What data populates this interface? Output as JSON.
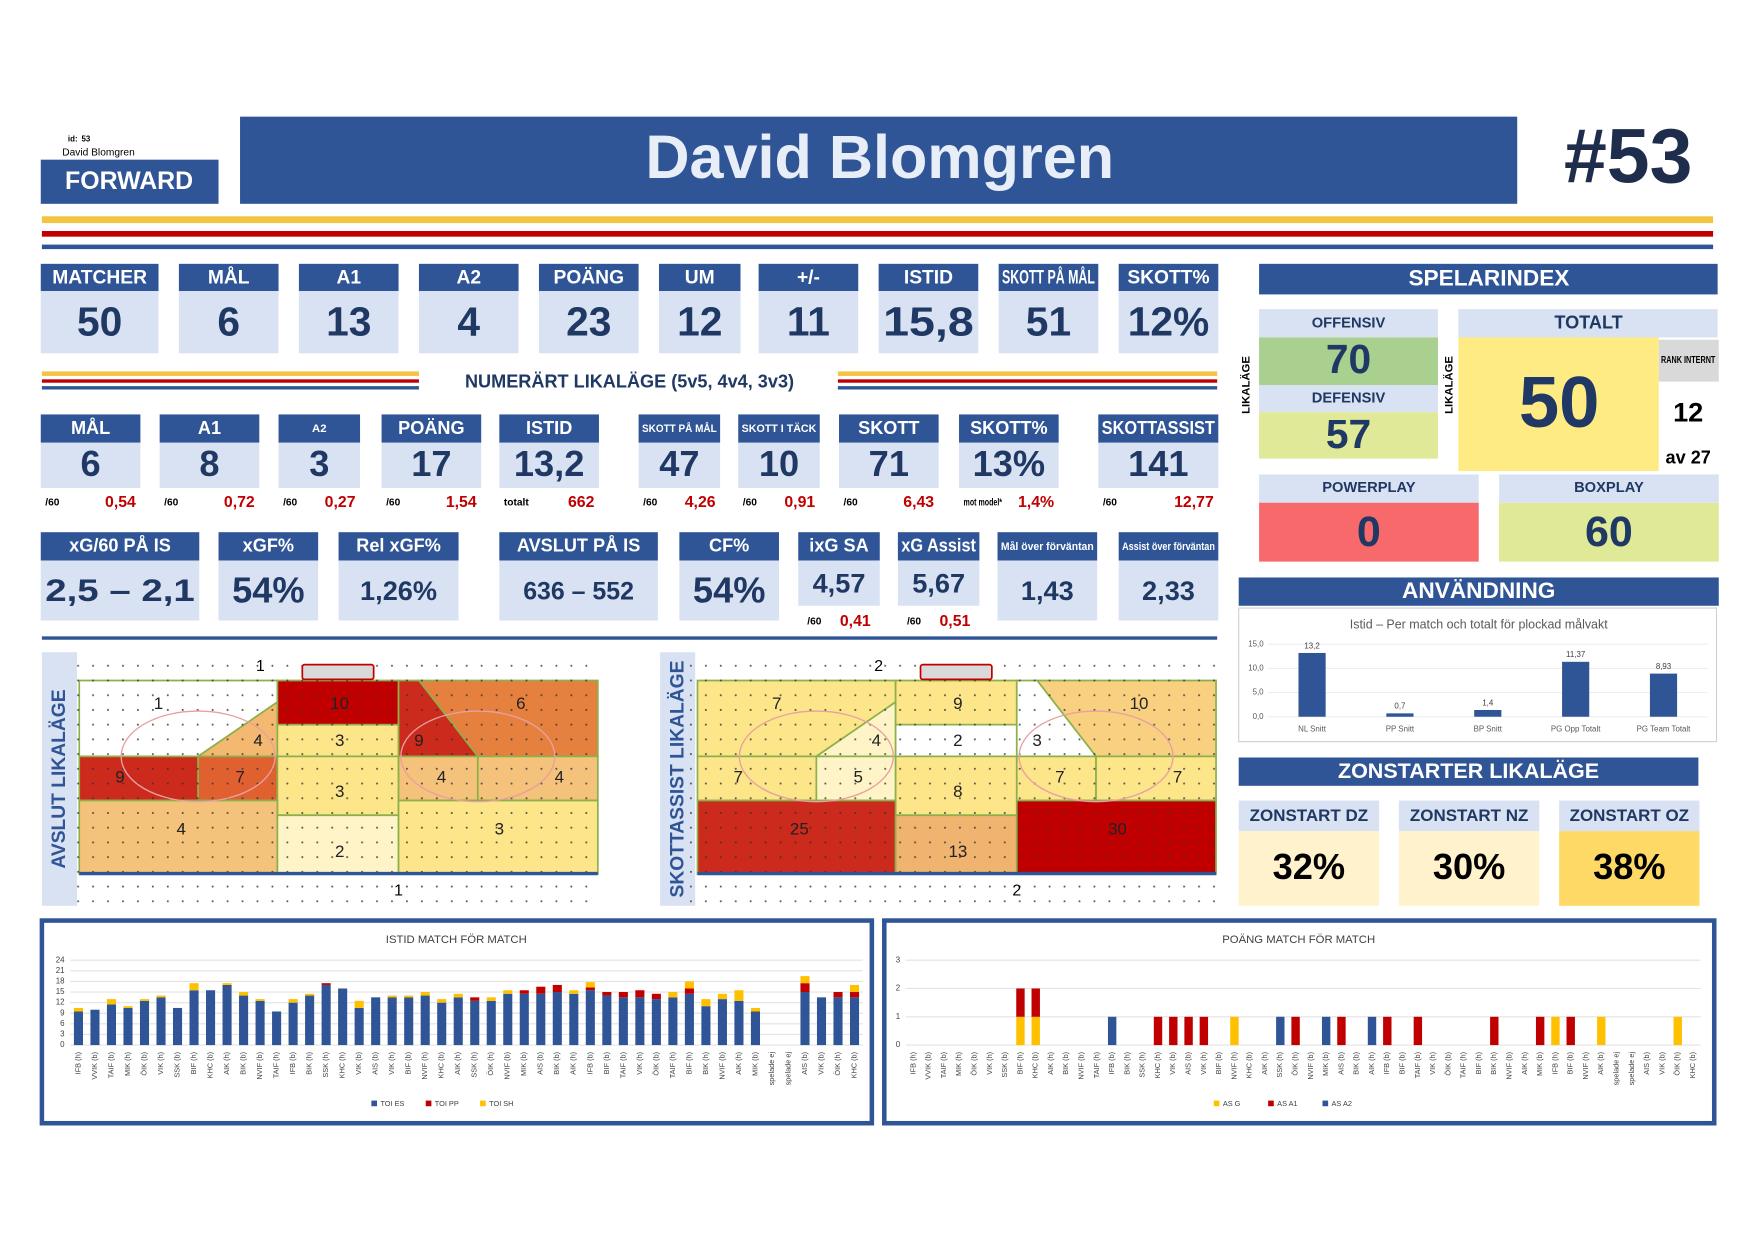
{
  "header": {
    "id_label": "id:",
    "id": "53",
    "name_small": "David Blomgren",
    "position": "FORWARD",
    "name": "David Blomgren",
    "number": "#53"
  },
  "stats": [
    {
      "label": "MATCHER",
      "value": "50"
    },
    {
      "label": "MÅL",
      "value": "6"
    },
    {
      "label": "A1",
      "value": "13"
    },
    {
      "label": "A2",
      "value": "4"
    },
    {
      "label": "POÄNG",
      "value": "23"
    },
    {
      "label": "UM",
      "value": "12"
    },
    {
      "label": "+/-",
      "value": "11"
    },
    {
      "label": "ISTID",
      "value": "15,8"
    },
    {
      "label": "SKOTT PÅ MÅL",
      "value": "51"
    },
    {
      "label": "SKOTT%",
      "value": "12%"
    }
  ],
  "even_strength": {
    "title": "NUMERÄRT LIKALÄGE (5v5, 4v4, 3v3)",
    "items": [
      {
        "label": "MÅL",
        "value": "6",
        "sub_label": "/60",
        "sub_value": "0,54"
      },
      {
        "label": "A1",
        "value": "8",
        "sub_label": "/60",
        "sub_value": "0,72"
      },
      {
        "label": "A2",
        "value": "3",
        "sub_label": "/60",
        "sub_value": "0,27"
      },
      {
        "label": "POÄNG",
        "value": "17",
        "sub_label": "/60",
        "sub_value": "1,54"
      },
      {
        "label": "ISTID",
        "value": "13,2",
        "sub_label": "totalt",
        "sub_value": "662"
      },
      {
        "label": "SKOTT PÅ MÅL",
        "value": "47",
        "sub_label": "/60",
        "sub_value": "4,26"
      },
      {
        "label": "SKOTT I TÄCK",
        "value": "10",
        "sub_label": "/60",
        "sub_value": "0,91"
      },
      {
        "label": "SKOTT",
        "value": "71",
        "sub_label": "/60",
        "sub_value": "6,43"
      },
      {
        "label": "SKOTT%",
        "value": "13%",
        "sub_label": "mot model*",
        "sub_value": "1,4%"
      },
      {
        "label": "SKOTTASSIST",
        "value": "141",
        "sub_label": "/60",
        "sub_value": "12,77"
      }
    ]
  },
  "xg": [
    {
      "label": "xG/60 PÅ IS",
      "value": "2,5 – 2,1"
    },
    {
      "label": "xGF%",
      "value": "54%"
    },
    {
      "label": "Rel xGF%",
      "value": "1,26%"
    },
    {
      "label": "AVSLUT PÅ IS",
      "value": "636 – 552"
    },
    {
      "label": "CF%",
      "value": "54%"
    },
    {
      "label": "ixG SA",
      "value": "4,57",
      "sub_label": "/60",
      "sub_value": "0,41"
    },
    {
      "label": "xG Assist",
      "value": "5,67",
      "sub_label": "/60",
      "sub_value": "0,51"
    },
    {
      "label": "Mål över förväntan",
      "value": "1,43"
    },
    {
      "label": "Assist över förväntan",
      "value": "2,33"
    }
  ],
  "index": {
    "title": "SPELARINDEX",
    "side_label": "LIKALÄGE",
    "offensive_label": "OFFENSIV",
    "offensive": "70",
    "defensive_label": "DEFENSIV",
    "defensive": "57",
    "total_label": "TOTALT",
    "total": "50",
    "rank_label": "RANK INTERNT",
    "rank": "12",
    "rank_of": "av 27",
    "powerplay_label": "POWERPLAY",
    "powerplay": "0",
    "boxplay_label": "BOXPLAY",
    "boxplay": "60"
  },
  "usage": {
    "title": "ANVÄNDNING",
    "chart": {
      "type": "bar",
      "title": "Istid – Per match och totalt för plockad målvakt",
      "categories": [
        "NL Snitt",
        "PP Snitt",
        "BP Snitt",
        "PG Opp Totalt",
        "PG Team Totalt"
      ],
      "values": [
        13.2,
        0.7,
        1.4,
        11.37,
        8.93
      ],
      "value_labels": [
        "13,2",
        "0,7",
        "1,4",
        "11,37",
        "8,93"
      ],
      "color": "#2f5597",
      "ylim": [
        0,
        15
      ],
      "yticks": [
        {
          "value": 0,
          "label": "0,0"
        },
        {
          "value": 5,
          "label": "5,0"
        },
        {
          "value": 10,
          "label": "10,0"
        },
        {
          "value": 15,
          "label": "15,0"
        }
      ]
    }
  },
  "zone_starts": {
    "title": "ZONSTARTER LIKALÄGE",
    "items": [
      {
        "label": "ZONSTART DZ",
        "value": "32%",
        "color": "#fff2cc"
      },
      {
        "label": "ZONSTART NZ",
        "value": "30%",
        "color": "#fff2cc"
      },
      {
        "label": "ZONSTART OZ",
        "value": "38%",
        "color": "#ffd966"
      }
    ]
  },
  "rinks": [
    {
      "title": "AVSLUT LIKALÄGE",
      "top_label": "1",
      "bottom_label": "1",
      "zones": [
        {
          "value": 1,
          "color": "#ffffff"
        },
        {
          "value": 4,
          "color": "#f4b870"
        },
        {
          "value": 10,
          "color": "#c00000"
        },
        {
          "value": 3,
          "color": "#fde58a"
        },
        {
          "value": 6,
          "color": "#e5803f"
        },
        {
          "value": 9,
          "color": "#cc2a1c"
        },
        {
          "value": 9,
          "color": "#cc2a1c"
        },
        {
          "value": 7,
          "color": "#e06030"
        },
        {
          "value": 3,
          "color": "#fde58a"
        },
        {
          "value": 4,
          "color": "#f4c27a"
        },
        {
          "value": 4,
          "color": "#f4c27a"
        },
        {
          "value": 4,
          "color": "#f4c27a"
        },
        {
          "value": 2,
          "color": "#fff4c8"
        },
        {
          "value": 3,
          "color": "#fde58a"
        }
      ]
    },
    {
      "title": "SKOTTASSIST LIKALÄGE",
      "top_label": "2",
      "bottom_label": "2",
      "zones": [
        {
          "value": 7,
          "color": "#fde58a"
        },
        {
          "value": 4,
          "color": "#fff4c8"
        },
        {
          "value": 9,
          "color": "#fde58a"
        },
        {
          "value": 2,
          "color": "#ffffff"
        },
        {
          "value": 10,
          "color": "#f8d080"
        },
        {
          "value": 3,
          "color": "#ffffff"
        },
        {
          "value": 7,
          "color": "#fde58a"
        },
        {
          "value": 5,
          "color": "#fff4c8"
        },
        {
          "value": 8,
          "color": "#fde58a"
        },
        {
          "value": 7,
          "color": "#fde58a"
        },
        {
          "value": 7,
          "color": "#fde58a"
        },
        {
          "value": 25,
          "color": "#cc2a1c"
        },
        {
          "value": 13,
          "color": "#f0b470"
        },
        {
          "value": 30,
          "color": "#c00000"
        }
      ]
    }
  ],
  "toi_chart": {
    "type": "bar",
    "stacked": true,
    "title": "ISTID MATCH FÖR MATCH",
    "categories": [
      "IFB (h)",
      "VVIK (b)",
      "TAIF (b)",
      "MIK (h)",
      "ÖIK (b)",
      "VIK (h)",
      "SSK (b)",
      "BIF (h)",
      "KHC (b)",
      "AIK (h)",
      "BIK (b)",
      "NVIF (b)",
      "TAIF (h)",
      "IFB (b)",
      "BIK (h)",
      "SSK (h)",
      "KHC (h)",
      "VIK (b)",
      "AIS (b)",
      "VIK (h)",
      "BIF (b)",
      "NVIF (h)",
      "KHC (b)",
      "AIK (h)",
      "SSK (h)",
      "ÖIK (h)",
      "NVIF (b)",
      "MIK (b)",
      "AIS (b)",
      "BIK (b)",
      "AIK (h)",
      "IFB (b)",
      "BIF (b)",
      "TAIF (b)",
      "VIK (h)",
      "ÖIK (b)",
      "TAIF (h)",
      "BIF (h)",
      "BIK (h)",
      "NVIF (b)",
      "AIK (h)",
      "MIK (b)",
      "spelade ej",
      "spelade ej",
      "AIS (b)",
      "VIK (b)",
      "ÖIK (h)",
      "KHC (b)"
    ],
    "series": [
      {
        "name": "TOI ES",
        "color": "#2f5597",
        "values": [
          9.5,
          10,
          11.5,
          10.5,
          12.5,
          13.5,
          10.5,
          15.5,
          15.5,
          17,
          14,
          12.5,
          9.5,
          12,
          14,
          17,
          16,
          10.5,
          13.5,
          13.5,
          13.5,
          14,
          12,
          13.5,
          12.5,
          12.5,
          14.5,
          14.5,
          14.5,
          15,
          14.5,
          15.5,
          14,
          13.5,
          13.5,
          13,
          13.5,
          14.5,
          11,
          13,
          12.5,
          9.5,
          0,
          0,
          15,
          13.5,
          13.5,
          13.5
        ]
      },
      {
        "name": "TOI PP",
        "color": "#c00000",
        "values": [
          0,
          0,
          0,
          0,
          0,
          0,
          0,
          0,
          0,
          0,
          0,
          0,
          0,
          0,
          0,
          0.5,
          0,
          0,
          0,
          0,
          0,
          0,
          0,
          0,
          1,
          0,
          0,
          1,
          2,
          2,
          0,
          0.8,
          1,
          1.5,
          2,
          1.5,
          0,
          1.5,
          0,
          0,
          0,
          0,
          0,
          0,
          2.5,
          0,
          1.5,
          1.5
        ]
      },
      {
        "name": "TOI SH",
        "color": "#ffc000",
        "values": [
          1,
          0,
          1.5,
          0.5,
          0.5,
          0.5,
          0,
          2,
          0,
          0.5,
          1,
          0.5,
          0,
          1,
          0.5,
          0,
          0,
          2,
          0,
          0.5,
          0.5,
          1,
          1,
          1,
          0,
          1,
          1,
          0,
          0,
          0,
          1,
          1.5,
          0,
          0,
          0,
          0,
          1.5,
          2,
          2,
          1.5,
          3,
          1,
          0,
          0,
          2,
          0,
          0,
          2
        ]
      }
    ],
    "ylim": [
      0,
      24
    ],
    "yticks": [
      0,
      3,
      6,
      9,
      12,
      15,
      18,
      21,
      24
    ],
    "grid": true
  },
  "points_chart": {
    "type": "bar",
    "stacked": true,
    "title": "POÄNG MATCH FÖR MATCH",
    "categories": [
      "IFB (h)",
      "VVIK (b)",
      "TAIF (b)",
      "MIK (h)",
      "ÖIK (b)",
      "VIK (h)",
      "SSK (b)",
      "BIF (h)",
      "KHC (b)",
      "AIK (h)",
      "BIK (b)",
      "NVIF (b)",
      "TAIF (h)",
      "IFB (b)",
      "BIK (h)",
      "SSK (h)",
      "KHC (h)",
      "VIK (b)",
      "AIS (b)",
      "VIK (h)",
      "BIF (b)",
      "NVIF (h)",
      "KHC (b)",
      "AIK (h)",
      "SSK (h)",
      "ÖIK (h)",
      "NVIF (b)",
      "MIK (b)",
      "AIS (b)",
      "BIK (b)",
      "AIK (h)",
      "IFB (b)",
      "BIF (b)",
      "TAIF (b)",
      "VIK (h)",
      "ÖIK (b)",
      "TAIF (h)",
      "BIF (h)",
      "BIK (h)",
      "NVIF (b)",
      "AIK (h)",
      "MIK (b)",
      "IFB (h)",
      "BIF (b)",
      "NVIF (h)",
      "AIK (b)",
      "spelade ej",
      "spelade ej",
      "AIS (b)",
      "VIK (b)",
      "ÖIK (h)",
      "KHC (b)"
    ],
    "series": [
      {
        "name": "AS G",
        "color": "#ffc000",
        "values": [
          0,
          0,
          0,
          0,
          0,
          0,
          0,
          1,
          1,
          0,
          0,
          0,
          0,
          0,
          0,
          0,
          0,
          0,
          0,
          0,
          0,
          1,
          0,
          0,
          0,
          0,
          0,
          0,
          0,
          0,
          0,
          0,
          0,
          0,
          0,
          0,
          0,
          0,
          0,
          0,
          0,
          0,
          1,
          0,
          0,
          1,
          0,
          0,
          0,
          0,
          1,
          0
        ]
      },
      {
        "name": "AS A1",
        "color": "#c00000",
        "values": [
          0,
          0,
          0,
          0,
          0,
          0,
          0,
          1,
          1,
          0,
          0,
          0,
          0,
          0,
          0,
          0,
          1,
          1,
          1,
          1,
          0,
          0,
          0,
          0,
          0,
          1,
          0,
          0,
          1,
          0,
          0,
          1,
          0,
          1,
          0,
          0,
          0,
          0,
          1,
          0,
          0,
          1,
          0,
          1,
          0,
          0,
          0,
          0,
          0,
          0,
          0,
          0
        ]
      },
      {
        "name": "AS A2",
        "color": "#2f5597",
        "values": [
          0,
          0,
          0,
          0,
          0,
          0,
          0,
          0,
          0,
          0,
          0,
          0,
          0,
          1,
          0,
          0,
          0,
          0,
          0,
          0,
          0,
          0,
          0,
          0,
          1,
          0,
          0,
          1,
          0,
          0,
          1,
          0,
          0,
          0,
          0,
          0,
          0,
          0,
          0,
          0,
          0,
          0,
          0,
          0,
          0,
          0,
          0,
          0,
          0,
          0,
          0,
          0
        ]
      }
    ],
    "ylim": [
      0,
      3
    ],
    "yticks": [
      0,
      1,
      2,
      3
    ],
    "grid": true
  }
}
